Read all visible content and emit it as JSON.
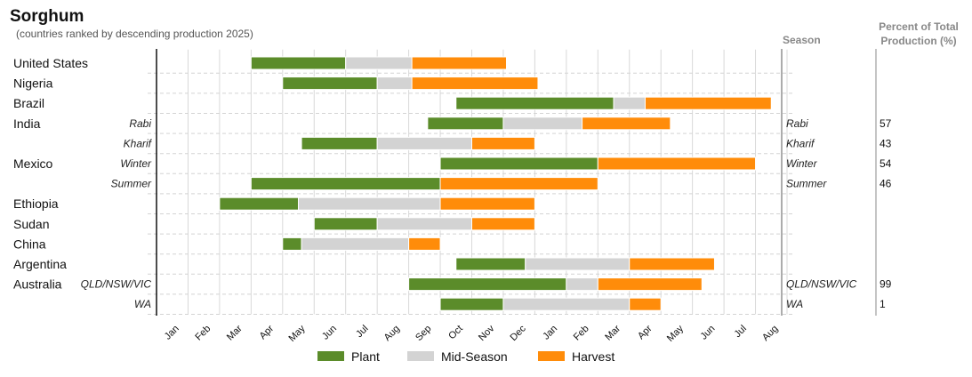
{
  "chart_data": {
    "type": "gantt",
    "title": "Sorghum",
    "subtitle": "(countries ranked by descending production 2025)",
    "season_header": "Season",
    "percent_header_line1": "Percent of Total",
    "percent_header_line2": "Production (%)",
    "months": [
      "Jan",
      "Feb",
      "Mar",
      "Apr",
      "May",
      "Jun",
      "Jul",
      "Aug",
      "Sep",
      "Oct",
      "Nov",
      "Dec",
      "Jan",
      "Feb",
      "Mar",
      "Apr",
      "May",
      "Jun",
      "Jul",
      "Aug"
    ],
    "legend": [
      {
        "key": "plant",
        "label": "Plant",
        "color": "#5b8c2a"
      },
      {
        "key": "mid",
        "label": "Mid-Season",
        "color": "#d3d3d3"
      },
      {
        "key": "harvest",
        "label": "Harvest",
        "color": "#ff8c0a"
      }
    ],
    "rows": [
      {
        "country": "United States",
        "season": "",
        "percent": "",
        "plant": [
          3.0,
          6.0
        ],
        "mid": [
          6.0,
          8.1
        ],
        "harvest": [
          8.1,
          11.1
        ]
      },
      {
        "country": "Nigeria",
        "season": "",
        "percent": "",
        "plant": [
          4.0,
          7.0
        ],
        "mid": [
          7.0,
          8.1
        ],
        "harvest": [
          8.1,
          12.1
        ]
      },
      {
        "country": "Brazil",
        "season": "",
        "percent": "",
        "plant": [
          9.5,
          14.5
        ],
        "mid": [
          14.5,
          15.5
        ],
        "harvest": [
          15.5,
          19.5
        ]
      },
      {
        "country": "India",
        "season": "Rabi",
        "percent": "57",
        "plant": [
          8.6,
          11.0
        ],
        "mid": [
          11.0,
          13.5
        ],
        "harvest": [
          13.5,
          16.3
        ]
      },
      {
        "country": "",
        "season": "Kharif",
        "percent": "43",
        "plant": [
          4.6,
          7.0
        ],
        "mid": [
          7.0,
          10.0
        ],
        "harvest": [
          10.0,
          12.0
        ]
      },
      {
        "country": "Mexico",
        "season": "Winter",
        "percent": "54",
        "plant": [
          9.0,
          14.0
        ],
        "mid": null,
        "harvest": [
          14.0,
          19.0
        ]
      },
      {
        "country": "",
        "season": "Summer",
        "percent": "46",
        "plant": [
          3.0,
          9.0
        ],
        "mid": null,
        "harvest": [
          9.0,
          14.0
        ]
      },
      {
        "country": "Ethiopia",
        "season": "",
        "percent": "",
        "plant": [
          2.0,
          4.5
        ],
        "mid": [
          4.5,
          9.0
        ],
        "harvest": [
          9.0,
          12.0
        ]
      },
      {
        "country": "Sudan",
        "season": "",
        "percent": "",
        "plant": [
          5.0,
          7.0
        ],
        "mid": [
          7.0,
          10.0
        ],
        "harvest": [
          10.0,
          12.0
        ]
      },
      {
        "country": "China",
        "season": "",
        "percent": "",
        "plant": [
          4.0,
          4.6
        ],
        "mid": [
          4.6,
          8.0
        ],
        "harvest": [
          8.0,
          9.0
        ]
      },
      {
        "country": "Argentina",
        "season": "",
        "percent": "",
        "plant": [
          9.5,
          11.7
        ],
        "mid": [
          11.7,
          15.0
        ],
        "harvest": [
          15.0,
          17.7
        ]
      },
      {
        "country": "Australia",
        "season": "QLD/NSW/VIC",
        "percent": "99",
        "plant": [
          8.0,
          13.0
        ],
        "mid": [
          13.0,
          14.0
        ],
        "harvest": [
          14.0,
          17.3
        ]
      },
      {
        "country": "",
        "season": "WA",
        "percent": "1",
        "plant": [
          9.0,
          11.0
        ],
        "mid": [
          11.0,
          15.0
        ],
        "harvest": [
          15.0,
          16.0
        ]
      }
    ]
  }
}
